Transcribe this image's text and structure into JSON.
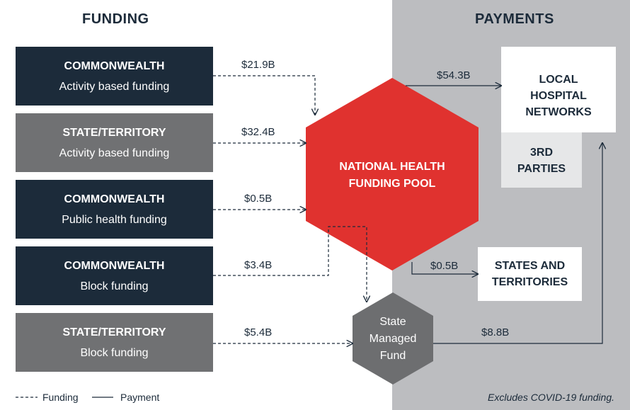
{
  "headers": {
    "funding": "FUNDING",
    "payments": "PAYMENTS"
  },
  "sources": [
    {
      "title": "COMMONWEALTH",
      "subtitle": "Activity based funding",
      "amount": "$21.9B"
    },
    {
      "title": "STATE/TERRITORY",
      "subtitle": "Activity based funding",
      "amount": "$32.4B"
    },
    {
      "title": "COMMONWEALTH",
      "subtitle": "Public health funding",
      "amount": "$0.5B"
    },
    {
      "title": "COMMONWEALTH",
      "subtitle": "Block funding",
      "amount": "$3.4B"
    },
    {
      "title": "STATE/TERRITORY",
      "subtitle": "Block funding",
      "amount": "$5.4B"
    }
  ],
  "pool": {
    "line1": "NATIONAL HEALTH",
    "line2": "FUNDING POOL"
  },
  "fund": {
    "line1": "State",
    "line2": "Managed",
    "line3": "Fund"
  },
  "recipients": {
    "lhn": {
      "line1": "LOCAL",
      "line2": "HOSPITAL",
      "line3": "NETWORKS"
    },
    "third": {
      "line1": "3RD",
      "line2": "PARTIES"
    },
    "states": {
      "line1": "STATES AND",
      "line2": "TERRITORIES"
    }
  },
  "payments": {
    "to_lhn": "$54.3B",
    "to_states": "$0.5B",
    "from_fund": "$8.8B"
  },
  "legend": {
    "funding": "Funding",
    "payment": "Payment"
  },
  "note": "Excludes COVID-19 funding.",
  "colors": {
    "navy": "#1c2b3a",
    "grey": "#707173",
    "red": "#e0322f",
    "fund_grey": "#6d6e70",
    "payments_bg": "#bcbdc0"
  }
}
